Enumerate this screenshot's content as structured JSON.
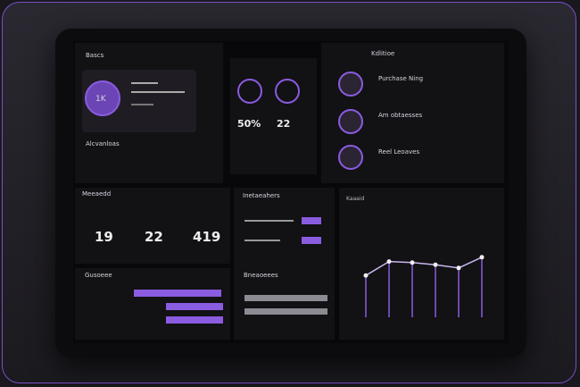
{
  "header": {
    "title": "Bascs",
    "right_title": "Kdlitioe"
  },
  "profile": {
    "badge": "1K",
    "label": "Alcvanloas"
  },
  "gauges": {
    "a": "50%",
    "b": "22"
  },
  "list": {
    "items": [
      "Purchase Ning",
      "Am obtaesses",
      "Reel Leoaves"
    ]
  },
  "stats": {
    "title": "Meeaedd",
    "values": [
      "19",
      "22",
      "419"
    ]
  },
  "inbox": {
    "title": "Inetaeahers"
  },
  "orders": {
    "title": "Gusoeee"
  },
  "balances": {
    "title": "Bneaoeees"
  },
  "chart": {
    "type": "line",
    "title": "Kaaaid",
    "values": [
      39,
      52,
      51,
      49,
      46,
      56
    ],
    "ylim": [
      0,
      100
    ],
    "color": "#c9b5f0"
  }
}
